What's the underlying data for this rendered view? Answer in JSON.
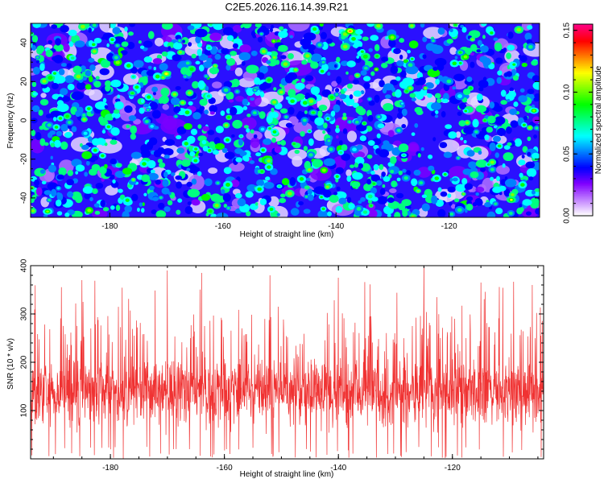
{
  "figure": {
    "title": "C2E5.2026.116.14.39.R21"
  },
  "chart_data": [
    {
      "type": "heatmap",
      "title": "C2E5.2026.116.14.39.R21",
      "xlabel": "Height of straight line (km)",
      "ylabel": "Frequency (Hz)",
      "xlim": [
        -194,
        -104
      ],
      "ylim": [
        -50,
        50
      ],
      "xticks": [
        -180,
        -160,
        -140,
        -120
      ],
      "yticks": [
        -40,
        -20,
        0,
        20,
        40
      ],
      "colorbar": {
        "label": "Normalized spectral amplitude",
        "range": [
          0,
          0.155
        ],
        "ticks": [
          "0.00",
          "0.05",
          "0.10",
          "0.15"
        ],
        "tick_values": [
          0,
          0.05,
          0.1,
          0.15
        ],
        "colors": [
          "#ffffff",
          "#c080ff",
          "#8000ff",
          "#0000ff",
          "#0080ff",
          "#00ffff",
          "#00ff80",
          "#00ff00",
          "#80ff00",
          "#ffff00",
          "#ff8000",
          "#ff0000",
          "#ff0080"
        ]
      },
      "note": "dense speckle field of blobs, background mostly blue/violet with sparse green-yellow-red peaks",
      "hotspots": [
        {
          "x": -137.5,
          "y": 46,
          "value": 0.13
        },
        {
          "x": -170,
          "y": 24,
          "value": 0.12
        },
        {
          "x": -109,
          "y": -41,
          "value": 0.11
        },
        {
          "x": -191,
          "y": -47,
          "value": 0.1
        },
        {
          "x": -105,
          "y": 5,
          "value": 0.1
        },
        {
          "x": -176,
          "y": 14,
          "value": 0.09
        },
        {
          "x": -144,
          "y": 4,
          "value": 0.09
        },
        {
          "x": -118,
          "y": 35,
          "value": 0.09
        },
        {
          "x": -150,
          "y": -34,
          "value": 0.08
        },
        {
          "x": -128,
          "y": -18,
          "value": 0.08
        }
      ]
    },
    {
      "type": "line",
      "title": "",
      "xlabel": "Height of straight line (km)",
      "ylabel": "SNR (10 * v/v)",
      "xlim": [
        -194,
        -104
      ],
      "ylim": [
        0,
        400
      ],
      "xticks": [
        -180,
        -160,
        -140,
        -120
      ],
      "yticks": [
        100,
        200,
        300,
        400
      ],
      "series": [
        {
          "name": "SNR",
          "color": "#f03232",
          "baseline": 130,
          "typical_range": [
            40,
            240
          ],
          "peaks": [
            {
              "x": -170,
              "y": 390
            },
            {
              "x": -125,
              "y": 400
            },
            {
              "x": -185,
              "y": 370
            },
            {
              "x": -164,
              "y": 385
            },
            {
              "x": -152,
              "y": 380
            },
            {
              "x": -140,
              "y": 375
            },
            {
              "x": -115,
              "y": 365
            },
            {
              "x": -106,
              "y": 360
            }
          ]
        }
      ]
    }
  ]
}
